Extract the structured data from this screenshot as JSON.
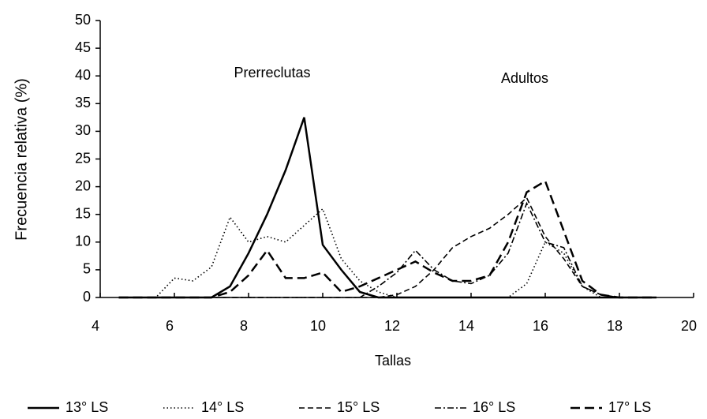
{
  "chart_data": {
    "type": "line",
    "x_label": "Tallas",
    "y_label": "Frecuencia relativa  (%)",
    "annotations": [
      "Prerreclutas",
      "Adultos"
    ],
    "x": [
      4.5,
      5,
      5.5,
      6,
      6.5,
      7,
      7.5,
      8,
      8.5,
      9,
      9.5,
      10,
      10.5,
      11,
      11.5,
      12,
      12.5,
      13,
      13.5,
      14,
      14.5,
      15,
      15.5,
      16,
      16.5,
      17,
      17.5,
      18,
      18.5,
      19
    ],
    "series": [
      {
        "name": "13° LS",
        "color": "#000000",
        "dash": "none",
        "values": [
          0,
          0,
          0,
          0,
          0,
          0,
          2,
          8,
          15,
          23,
          32.5,
          9.5,
          5,
          1,
          0,
          0,
          0,
          0,
          0,
          0,
          0,
          0,
          0,
          0,
          0,
          0,
          0,
          0,
          0,
          0
        ]
      },
      {
        "name": "14° LS",
        "color": "#000000",
        "dash": "1.5,3",
        "values": [
          0,
          0,
          0,
          3.5,
          3,
          5.5,
          14.5,
          10,
          11,
          10,
          13,
          16,
          7,
          3,
          1,
          0,
          0,
          0,
          0,
          0,
          0,
          0,
          2.5,
          10,
          8,
          2,
          0,
          0,
          0,
          0
        ]
      },
      {
        "name": "15° LS",
        "color": "#000000",
        "dash": "7,4",
        "values": [
          0,
          0,
          0,
          0,
          0,
          0,
          0,
          0,
          0,
          0,
          0,
          0,
          0,
          0,
          0,
          0.5,
          2,
          5,
          9,
          11,
          12.5,
          15,
          18,
          11,
          7,
          2,
          0.5,
          0,
          0,
          0
        ]
      },
      {
        "name": "16° LS",
        "color": "#000000",
        "dash": "8,3,2,3",
        "values": [
          0,
          0,
          0,
          0,
          0,
          0,
          0,
          0,
          0,
          0,
          0,
          0,
          0,
          0,
          2,
          4.5,
          8.5,
          5,
          3,
          2.5,
          4,
          8,
          17,
          10,
          9,
          2,
          0.5,
          0,
          0,
          0
        ]
      },
      {
        "name": "17° LS",
        "color": "#000000",
        "dash": "12,6",
        "values": [
          0,
          0,
          0,
          0,
          0,
          0,
          1,
          4,
          8.5,
          3.5,
          3.5,
          4.5,
          1,
          2,
          3.5,
          5,
          6.5,
          4.5,
          3,
          3,
          4,
          10,
          19,
          21,
          12,
          3,
          0.5,
          0,
          0,
          0
        ]
      }
    ],
    "xlim": [
      4,
      20
    ],
    "xticks": [
      4,
      6,
      8,
      10,
      12,
      14,
      16,
      18,
      20
    ],
    "ylim": [
      0,
      50
    ],
    "yticks": [
      0,
      5,
      10,
      15,
      20,
      25,
      30,
      35,
      40,
      45,
      50
    ]
  }
}
